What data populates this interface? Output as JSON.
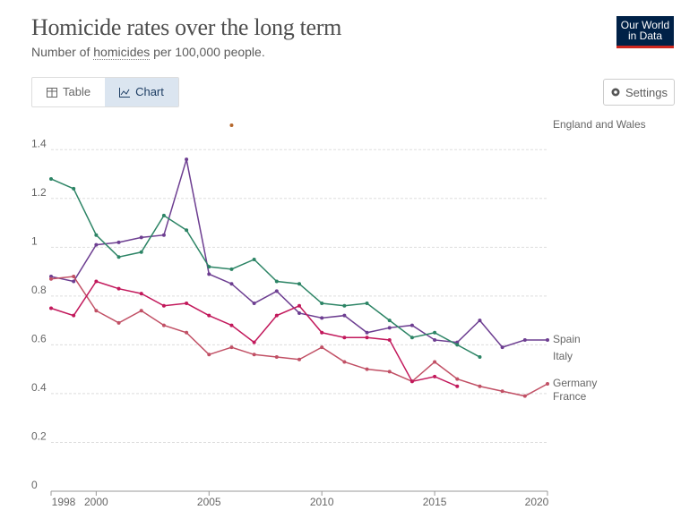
{
  "header": {
    "title": "Homicide rates over the long term",
    "subtitle_parts": [
      "Number of",
      "homicides",
      "per 100,000 people."
    ]
  },
  "tabs": [
    "Table",
    "Chart"
  ],
  "settings_button": "Settings",
  "logo": [
    "Our World",
    "in Data"
  ],
  "chart_data": {
    "type": "line",
    "x": [
      1998,
      1999,
      2000,
      2001,
      2002,
      2003,
      2004,
      2005,
      2006,
      2007,
      2008,
      2009,
      2010,
      2011,
      2012,
      2013,
      2014,
      2015,
      2016,
      2017,
      2018,
      2019,
      2020
    ],
    "xlim": [
      1998,
      2020
    ],
    "xticks": [
      1998,
      2000,
      2005,
      2010,
      2015,
      2020
    ],
    "ylim": [
      0,
      1.5
    ],
    "yticks": [
      0,
      0.2,
      0.4,
      0.6,
      0.8,
      1,
      1.2,
      1.4
    ],
    "grid": true,
    "series": [
      {
        "name": "England and Wales",
        "color": "#b5682c",
        "values": [
          null,
          null,
          null,
          null,
          null,
          null,
          null,
          null,
          1.5,
          null,
          null,
          null,
          null,
          null,
          null,
          null,
          null,
          null,
          null,
          null,
          null,
          null,
          null
        ]
      },
      {
        "name": "Spain",
        "color": "#6d3e91",
        "values": [
          0.88,
          0.86,
          1.01,
          1.02,
          1.04,
          1.05,
          1.36,
          0.89,
          0.85,
          0.77,
          0.82,
          0.73,
          0.71,
          0.72,
          0.65,
          0.67,
          0.68,
          0.62,
          0.61,
          0.7,
          0.59,
          0.62,
          0.62
        ]
      },
      {
        "name": "Italy",
        "color": "#2c8465",
        "values": [
          1.28,
          1.24,
          1.05,
          0.96,
          0.98,
          1.13,
          1.07,
          0.92,
          0.91,
          0.95,
          0.86,
          0.85,
          0.77,
          0.76,
          0.77,
          0.7,
          0.63,
          0.65,
          0.6,
          0.55,
          null,
          null,
          null
        ]
      },
      {
        "name": "Germany",
        "color": "#c15065",
        "values": [
          0.87,
          0.88,
          0.74,
          0.69,
          0.74,
          0.68,
          0.65,
          0.56,
          0.59,
          0.56,
          0.55,
          0.54,
          0.59,
          0.53,
          0.5,
          0.49,
          0.45,
          0.53,
          0.46,
          0.43,
          0.41,
          0.39,
          0.44
        ]
      },
      {
        "name": "France",
        "color": "#c2185b",
        "values": [
          0.75,
          0.72,
          0.86,
          0.83,
          0.81,
          0.76,
          0.77,
          0.72,
          0.68,
          0.61,
          0.72,
          0.76,
          0.65,
          0.63,
          0.63,
          0.62,
          0.45,
          0.47,
          0.43,
          null,
          null,
          null,
          null
        ]
      }
    ]
  }
}
